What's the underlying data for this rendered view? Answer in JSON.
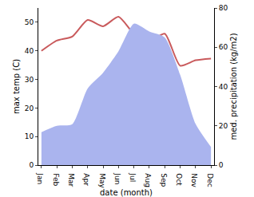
{
  "chart_data": {
    "type": "line",
    "x_label": "date (month)",
    "y_label": "max temp (C)",
    "y2_label": "med. precipitation (kg/m2)",
    "categories": [
      "Jan",
      "Feb",
      "Mar",
      "Apr",
      "May",
      "Jun",
      "Jul",
      "Aug",
      "Sep",
      "Oct",
      "Nov",
      "Dec"
    ],
    "series": [
      {
        "name": "med. precipitation",
        "type": "area",
        "axis": "y2",
        "color": "#aab4ee",
        "values": [
          16.8,
          20,
          20.8,
          39,
          47,
          58,
          72,
          68,
          65,
          46,
          21,
          9.2
        ]
      },
      {
        "name": "max temp",
        "type": "line",
        "color": "#c95a5c",
        "values": [
          40,
          43.6,
          45,
          50.8,
          48.6,
          51.9,
          46,
          43.4,
          46,
          34.8,
          36.7,
          37.3
        ]
      }
    ],
    "ylim": [
      0,
      55
    ],
    "yticks": [
      0,
      10,
      20,
      30,
      40,
      50
    ],
    "y2lim": [
      0,
      80
    ],
    "y2ticks": [
      0,
      20,
      40,
      60,
      80
    ],
    "grid": false
  }
}
